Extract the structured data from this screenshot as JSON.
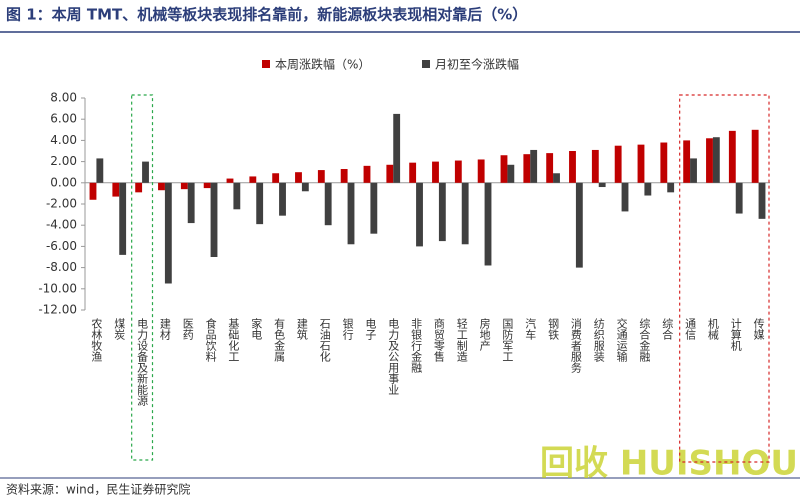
{
  "chart_data": {
    "type": "bar",
    "title": "图 1：本周 TMT、机械等板块表现排名靠前，新能源板块表现相对靠后（%）",
    "source": "资料来源：wind，民生证券研究院",
    "watermark": "回收 HUISHOUREN",
    "categories": [
      "农林牧渔",
      "煤炭",
      "电力设备及新能源",
      "建材",
      "医药",
      "食品饮料",
      "基础化工",
      "家电",
      "有色金属",
      "建筑",
      "石油石化",
      "银行",
      "电子",
      "电力及公用事业",
      "非银行金融",
      "商贸零售",
      "轻工制造",
      "房地产",
      "国防军工",
      "汽车",
      "钢铁",
      "消费者服务",
      "纺织服装",
      "交通运输",
      "综合金融",
      "综合",
      "通信",
      "机械",
      "计算机",
      "传媒"
    ],
    "series": [
      {
        "name": "本周涨跌幅（%）",
        "color": "#c00000",
        "values": [
          -1.6,
          -1.3,
          -0.9,
          -0.7,
          -0.6,
          -0.5,
          0.4,
          0.6,
          0.9,
          1.0,
          1.2,
          1.3,
          1.6,
          1.7,
          1.9,
          2.0,
          2.1,
          2.2,
          2.6,
          2.7,
          2.8,
          3.0,
          3.1,
          3.5,
          3.6,
          3.8,
          4.0,
          4.2,
          4.9,
          5.0
        ]
      },
      {
        "name": "月初至今涨跌幅",
        "color": "#404040",
        "values": [
          2.3,
          -6.8,
          2.0,
          -9.5,
          -3.8,
          -7.0,
          -2.5,
          -3.9,
          -3.1,
          -0.8,
          -4.0,
          -5.8,
          -4.8,
          6.5,
          -6.0,
          -5.5,
          -5.8,
          -7.8,
          1.7,
          3.1,
          0.9,
          -8.0,
          -0.4,
          -2.7,
          -1.2,
          -0.9,
          2.3,
          4.3,
          -2.9,
          -3.4
        ]
      }
    ],
    "ylim": [
      -12,
      8
    ],
    "yticks": [
      {
        "value": -12,
        "label": "-12.00"
      },
      {
        "value": -10,
        "label": "-10.00"
      },
      {
        "value": -8,
        "label": "-8.00"
      },
      {
        "value": -6,
        "label": "-6.00"
      },
      {
        "value": -4,
        "label": "-4.00"
      },
      {
        "value": -2,
        "label": "-2.00"
      },
      {
        "value": 0,
        "label": "0.00"
      },
      {
        "value": 2,
        "label": "2.00"
      },
      {
        "value": 4,
        "label": "4.00"
      },
      {
        "value": 6,
        "label": "6.00"
      },
      {
        "value": 8,
        "label": "8.00"
      }
    ]
  }
}
